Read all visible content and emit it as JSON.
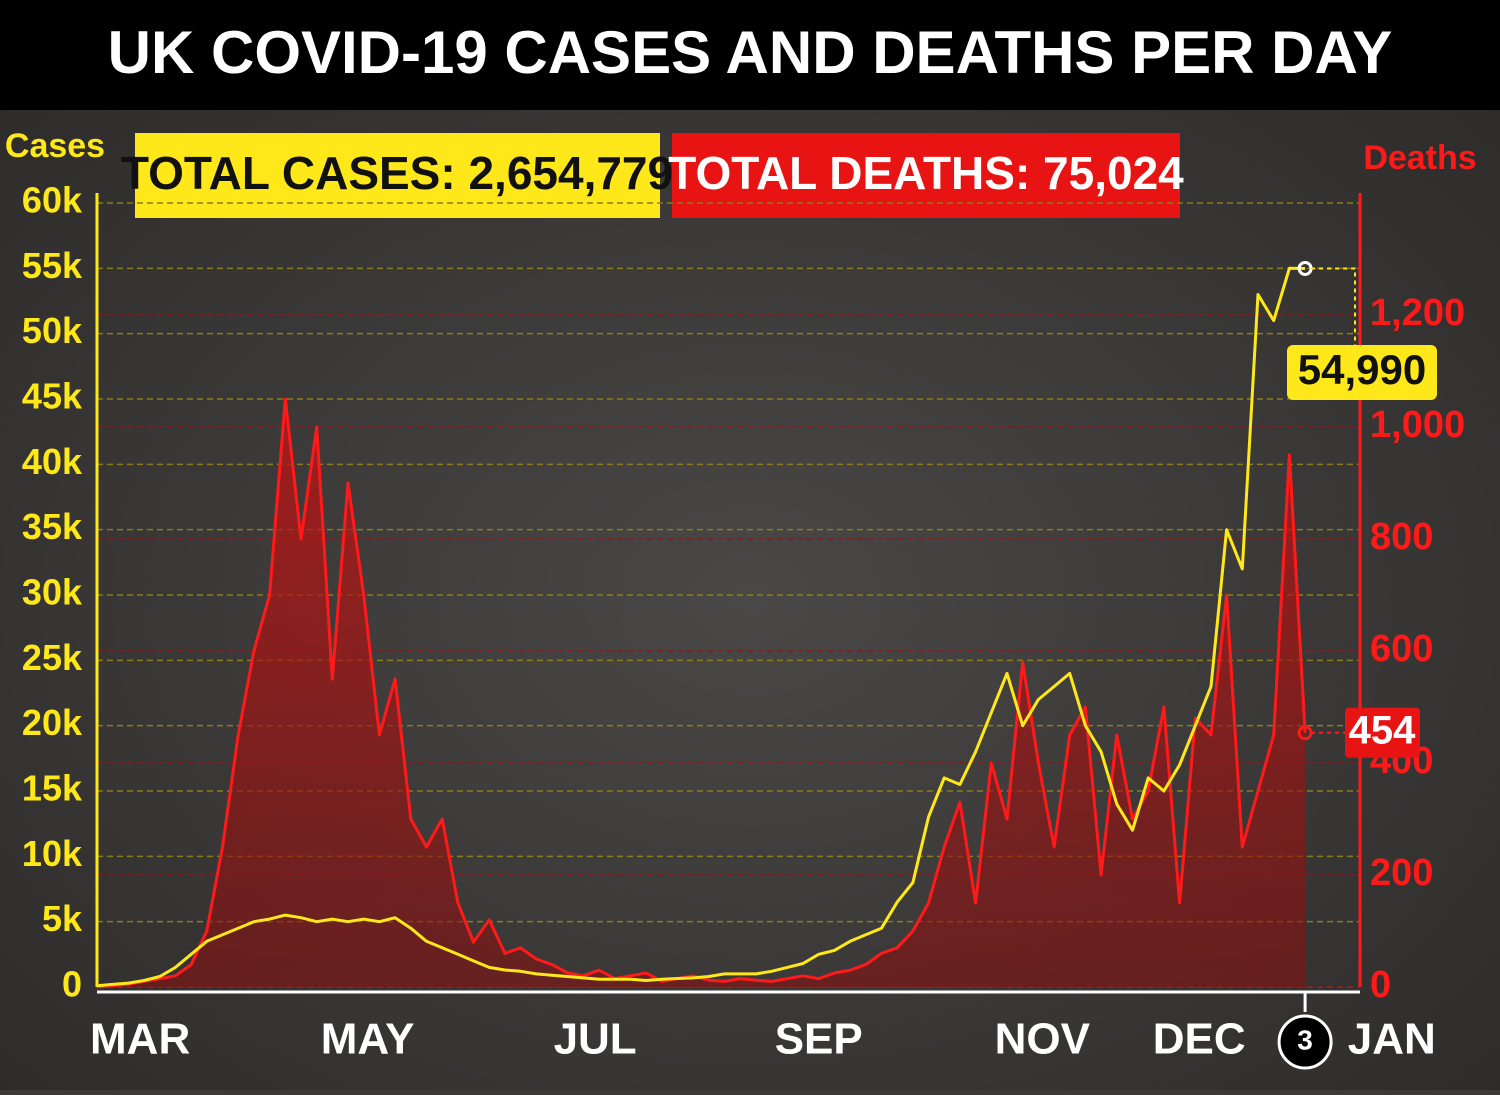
{
  "chart_data": {
    "type": "line",
    "title": "UK COVID-19 CASES AND DEATHS PER DAY",
    "annotations": [
      "TOTAL CASES: 2,654,779",
      "TOTAL DEATHS: 75,024"
    ],
    "y_label": "Cases",
    "y2_label": "Deaths",
    "x": [
      0,
      4,
      8,
      12,
      16,
      20,
      24,
      28,
      32,
      36,
      40,
      44,
      48,
      52,
      56,
      60,
      64,
      68,
      72,
      76,
      80,
      84,
      88,
      92,
      96,
      100,
      104,
      108,
      112,
      116,
      120,
      124,
      128,
      132,
      136,
      140,
      144,
      148,
      152,
      156,
      160,
      164,
      168,
      172,
      176,
      180,
      184,
      188,
      192,
      196,
      200,
      204,
      208,
      212,
      216,
      220,
      224,
      228,
      232,
      236,
      240,
      244,
      248,
      252,
      256,
      260,
      264,
      268,
      272,
      276,
      280,
      284,
      288,
      292,
      296,
      300,
      304,
      308
    ],
    "xlim": [
      0,
      322
    ],
    "xticks": [
      {
        "value": 11,
        "label": "MAR"
      },
      {
        "value": 69,
        "label": "MAY"
      },
      {
        "value": 127,
        "label": "JUL"
      },
      {
        "value": 184,
        "label": "SEP"
      },
      {
        "value": 241,
        "label": "NOV"
      },
      {
        "value": 281,
        "label": "DEC"
      },
      {
        "value": 308,
        "label": "3"
      },
      {
        "value": 325,
        "label": "JAN"
      }
    ],
    "ylim": [
      0,
      60000
    ],
    "yticks": [
      0,
      {
        "value": 5000,
        "label": "5k"
      },
      {
        "value": 10000,
        "label": "10k"
      },
      {
        "value": 15000,
        "label": "15k"
      },
      {
        "value": 20000,
        "label": "20k"
      },
      {
        "value": 25000,
        "label": "25k"
      },
      {
        "value": 30000,
        "label": "30k"
      },
      {
        "value": 35000,
        "label": "35k"
      },
      {
        "value": 40000,
        "label": "40k"
      },
      {
        "value": 45000,
        "label": "45k"
      },
      {
        "value": 50000,
        "label": "50k"
      },
      {
        "value": 55000,
        "label": "55k"
      },
      {
        "value": 60000,
        "label": "60k"
      }
    ],
    "y2lim": [
      0,
      1400
    ],
    "y2ticks": [
      0,
      200,
      400,
      600,
      800,
      {
        "value": 1000,
        "label": "1,000"
      },
      {
        "value": 1200,
        "label": "1,200"
      }
    ],
    "series": [
      {
        "name": "Deaths",
        "axis": "y2",
        "color": "#ff1a1a",
        "values": [
          0,
          2,
          5,
          10,
          15,
          20,
          40,
          100,
          250,
          450,
          600,
          700,
          1050,
          800,
          1000,
          550,
          900,
          700,
          450,
          550,
          300,
          250,
          300,
          150,
          80,
          120,
          60,
          70,
          50,
          40,
          25,
          20,
          30,
          15,
          20,
          25,
          10,
          15,
          20,
          12,
          10,
          15,
          12,
          10,
          15,
          20,
          15,
          25,
          30,
          40,
          60,
          70,
          100,
          150,
          250,
          330,
          150,
          400,
          300,
          580,
          400,
          250,
          450,
          500,
          200,
          450,
          300,
          350,
          500,
          150,
          480,
          450,
          700,
          250,
          350,
          450,
          950,
          454
        ],
        "value_labels": [
          null,
          null,
          null,
          null,
          null,
          null,
          null,
          null,
          null,
          null,
          null,
          null,
          null,
          null,
          null,
          null,
          null,
          null,
          null,
          null,
          null,
          null,
          null,
          null,
          null,
          null,
          null,
          null,
          null,
          null,
          null,
          null,
          null,
          null,
          null,
          null,
          null,
          null,
          null,
          null,
          null,
          null,
          null,
          null,
          null,
          null,
          null,
          null,
          null,
          null,
          null,
          null,
          null,
          null,
          null,
          null,
          null,
          null,
          null,
          null,
          null,
          null,
          null,
          null,
          null,
          null,
          null,
          null,
          null,
          null,
          null,
          null,
          null,
          null,
          null,
          null,
          null,
          "454"
        ]
      },
      {
        "name": "Cases",
        "color": "#ffe81a",
        "values": [
          100,
          200,
          300,
          500,
          800,
          1500,
          2500,
          3500,
          4000,
          4500,
          5000,
          5200,
          5500,
          5300,
          5000,
          5200,
          5000,
          5200,
          5000,
          5300,
          4500,
          3500,
          3000,
          2500,
          2000,
          1500,
          1300,
          1200,
          1000,
          900,
          800,
          700,
          600,
          600,
          600,
          500,
          600,
          650,
          700,
          800,
          1000,
          1000,
          1000,
          1200,
          1500,
          1800,
          2500,
          2800,
          3500,
          4000,
          4500,
          6500,
          8000,
          13000,
          16000,
          15500,
          18000,
          21000,
          24000,
          20000,
          22000,
          23000,
          24000,
          20000,
          18000,
          14000,
          12000,
          16000,
          15000,
          17000,
          20000,
          23000,
          35000,
          32000,
          53000,
          51000,
          55000,
          54990
        ],
        "value_labels": [
          null,
          null,
          null,
          null,
          null,
          null,
          null,
          null,
          null,
          null,
          null,
          null,
          null,
          null,
          null,
          null,
          null,
          null,
          null,
          null,
          null,
          null,
          null,
          null,
          null,
          null,
          null,
          null,
          null,
          null,
          null,
          null,
          null,
          null,
          null,
          null,
          null,
          null,
          null,
          null,
          null,
          null,
          null,
          null,
          null,
          null,
          null,
          null,
          null,
          null,
          null,
          null,
          null,
          null,
          null,
          null,
          null,
          null,
          null,
          null,
          null,
          null,
          null,
          null,
          null,
          null,
          null,
          null,
          null,
          null,
          null,
          null,
          null,
          null,
          null,
          null,
          null,
          "54,990"
        ]
      }
    ],
    "grid": true
  }
}
